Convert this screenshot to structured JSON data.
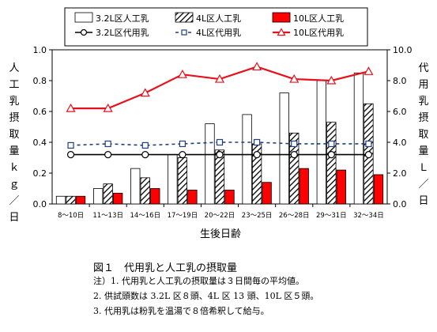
{
  "chart_data": {
    "type": "bar",
    "categories": [
      "8～10日",
      "11～13日",
      "14～16日",
      "17～19日",
      "20～22日",
      "23～25日",
      "26～28日",
      "29～31日",
      "32～34日"
    ],
    "bar_series": [
      {
        "name": "3.2L区人工乳",
        "values": [
          0.05,
          0.1,
          0.23,
          0.32,
          0.52,
          0.58,
          0.72,
          0.8,
          0.85
        ],
        "color": "#ffffff",
        "pattern": "none"
      },
      {
        "name": "4L区人工乳",
        "values": [
          0.05,
          0.13,
          0.17,
          0.3,
          0.35,
          0.39,
          0.46,
          0.53,
          0.65
        ],
        "color": "#ffffff",
        "pattern": "hatch"
      },
      {
        "name": "10L区人工乳",
        "values": [
          0.05,
          0.07,
          0.1,
          0.09,
          0.09,
          0.14,
          0.23,
          0.22,
          0.19
        ],
        "color": "#ff0000",
        "pattern": "none"
      }
    ],
    "line_series": [
      {
        "name": "3.2L区代用乳",
        "values": [
          3.2,
          3.2,
          3.2,
          3.2,
          3.2,
          3.2,
          3.2,
          3.2,
          3.2
        ],
        "color": "#000000",
        "marker": "circle"
      },
      {
        "name": "4L区代用乳",
        "values": [
          3.8,
          3.9,
          3.8,
          3.9,
          4.0,
          4.0,
          3.9,
          3.9,
          3.9
        ],
        "color": "#1f3f7f",
        "marker": "square"
      },
      {
        "name": "10L区代用乳",
        "values": [
          6.2,
          6.2,
          7.2,
          8.4,
          8.1,
          8.9,
          8.1,
          8.0,
          8.6
        ],
        "color": "#e8101a",
        "marker": "triangle"
      }
    ],
    "xlabel": "生後日齢",
    "ylabel_left": "人工乳摂取量ｋｇ／日",
    "ylabel_right": "代用乳摂取量Ｌ／日",
    "ylim_left": [
      0,
      1.0
    ],
    "ylim_right": [
      0,
      10.0
    ],
    "yticks_left": [
      "0.0",
      "0.2",
      "0.4",
      "0.6",
      "0.8",
      "1.0"
    ],
    "yticks_right": [
      "0.0",
      "2.0",
      "4.0",
      "6.0",
      "8.0",
      "10.0"
    ],
    "grid": false,
    "legend_position": "top"
  },
  "caption": {
    "title": "図１　代用乳と人工乳の摂取量",
    "notes": [
      "注）1. 代用乳と人工乳の摂取量は３日間毎の平均値。",
      "2. 供試頭数は 3.2L 区８頭、4L 区 13 頭、10L 区５頭。",
      "3. 代用乳は粉乳を温湯で８倍希釈して給与。"
    ]
  }
}
